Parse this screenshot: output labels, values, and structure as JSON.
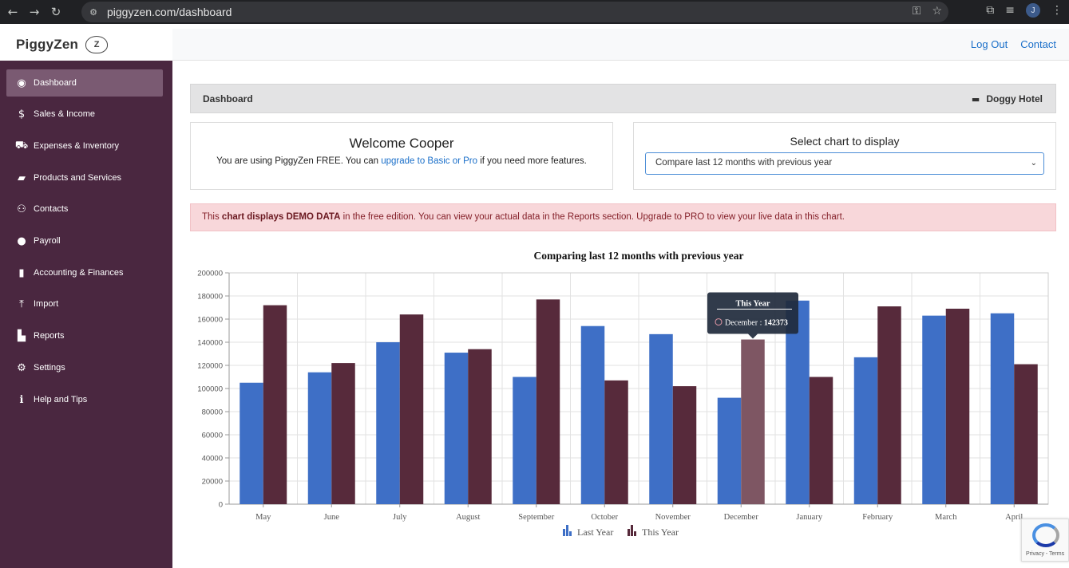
{
  "browser": {
    "url": "piggyzen.com/dashboard",
    "profile_initial": "J"
  },
  "brand": {
    "name": "PiggyZen",
    "logo_letter": "Z"
  },
  "header": {
    "logout": "Log Out",
    "contact": "Contact"
  },
  "sidebar": {
    "items": [
      {
        "label": "Dashboard",
        "icon": "dashboard-icon"
      },
      {
        "label": "Sales & Income",
        "icon": "dollar-icon"
      },
      {
        "label": "Expenses & Inventory",
        "icon": "cart-icon"
      },
      {
        "label": "Products and Services",
        "icon": "box-icon"
      },
      {
        "label": "Contacts",
        "icon": "users-icon"
      },
      {
        "label": "Payroll",
        "icon": "user-icon"
      },
      {
        "label": "Accounting & Finances",
        "icon": "book-icon"
      },
      {
        "label": "Import",
        "icon": "upload-icon"
      },
      {
        "label": "Reports",
        "icon": "bar-chart-icon"
      },
      {
        "label": "Settings",
        "icon": "gear-icon"
      },
      {
        "label": "Help and Tips",
        "icon": "info-icon"
      }
    ]
  },
  "main": {
    "breadcrumb": "Dashboard",
    "company": "Doggy Hotel",
    "welcome": {
      "title": "Welcome Cooper",
      "text_before": "You are using PiggyZen FREE. You can ",
      "link": "upgrade to Basic or Pro",
      "text_after": " if you need more features."
    },
    "select_chart": {
      "title": "Select chart to display",
      "selected": "Compare last 12 months with previous year"
    },
    "alert": {
      "before": "This ",
      "bold": "chart displays DEMO DATA",
      "after": " in the free edition. You can view your actual data in the Reports section. Upgrade to PRO to view your live data in this chart."
    }
  },
  "chart_data": {
    "type": "bar",
    "title": "Comparing last 12 months with previous year",
    "categories": [
      "May",
      "June",
      "July",
      "August",
      "September",
      "October",
      "November",
      "December",
      "January",
      "February",
      "March",
      "April"
    ],
    "series": [
      {
        "name": "Last Year",
        "color": "#3e6fc6",
        "values": [
          105000,
          114000,
          140000,
          131000,
          110000,
          154000,
          147000,
          92000,
          176000,
          127000,
          163000,
          165000
        ]
      },
      {
        "name": "This Year",
        "color": "#572a3b",
        "values": [
          172000,
          122000,
          164000,
          134000,
          177000,
          107000,
          102000,
          142373,
          110000,
          171000,
          169000,
          121000
        ]
      }
    ],
    "ylim": [
      0,
      200000
    ],
    "yticks": [
      0,
      20000,
      40000,
      60000,
      80000,
      100000,
      120000,
      140000,
      160000,
      180000,
      200000
    ],
    "grid": true,
    "legend": "bottom-center",
    "tooltip": {
      "series": "This Year",
      "category": "December",
      "value": "142373"
    }
  },
  "recaptcha": {
    "text": "Privacy - Terms"
  }
}
